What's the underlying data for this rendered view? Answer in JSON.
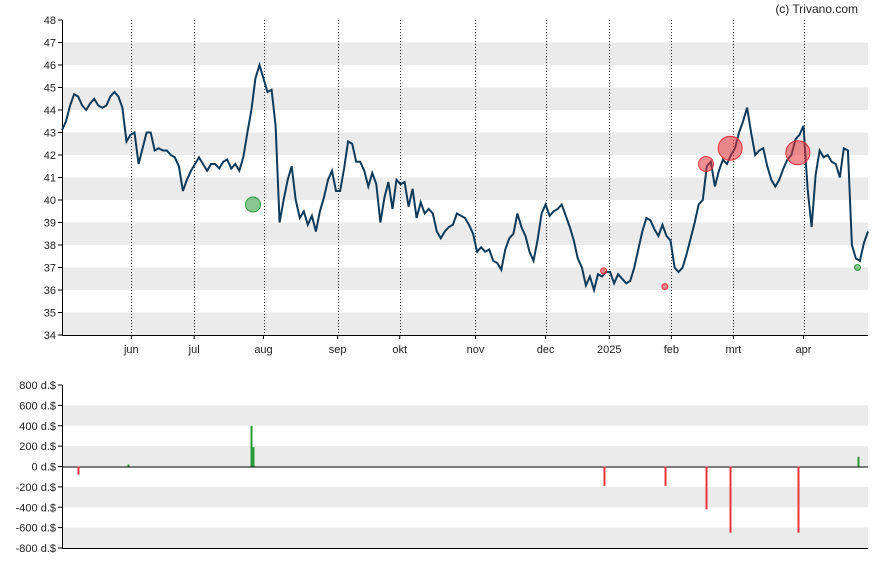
{
  "credit": "(c) Trivano.com",
  "colors": {
    "band": "#ebebeb",
    "line": "#0d3a5a",
    "buy": "#2a9a3a",
    "sell": "#e8333a",
    "axis": "#000000"
  },
  "chart_data": [
    {
      "type": "line",
      "ylim": [
        34,
        48
      ],
      "y_ticks": [
        "34",
        "35",
        "36",
        "37",
        "38",
        "39",
        "40",
        "41",
        "42",
        "43",
        "44",
        "45",
        "46",
        "47",
        "48"
      ],
      "x_ticks": [
        "jun",
        "jul",
        "aug",
        "sep",
        "okt",
        "nov",
        "dec",
        "2025",
        "feb",
        "mrt",
        "apr"
      ],
      "grid": "dotted vertical at month boundaries, alternating horizontal bands",
      "series": [
        {
          "values": [
            43.1,
            43.5,
            44.2,
            44.7,
            44.6,
            44.2,
            44.0,
            44.3,
            44.5,
            44.2,
            44.1,
            44.2,
            44.6,
            44.8,
            44.6,
            44.1,
            42.6,
            42.9,
            43.0,
            41.6,
            42.3,
            43.0,
            43.0,
            42.2,
            42.3,
            42.2,
            42.2,
            42.0,
            41.9,
            41.5,
            40.4,
            40.9,
            41.3,
            41.6,
            41.9,
            41.6,
            41.3,
            41.6,
            41.6,
            41.4,
            41.7,
            41.8,
            41.4,
            41.6,
            41.3,
            41.9,
            43.0,
            44.0,
            45.4,
            46.0,
            45.4,
            44.8,
            44.9,
            43.3,
            39.0,
            40.0,
            40.9,
            41.5,
            40.0,
            39.2,
            39.5,
            38.9,
            39.3,
            38.6,
            39.5,
            40.1,
            40.9,
            41.3,
            40.4,
            40.4,
            41.4,
            42.6,
            42.5,
            41.7,
            41.7,
            41.3,
            40.6,
            41.2,
            40.7,
            39.0,
            40.1,
            40.8,
            39.6,
            40.9,
            40.7,
            40.8,
            39.7,
            40.5,
            39.2,
            39.9,
            39.4,
            39.6,
            39.4,
            38.6,
            38.3,
            38.6,
            38.8,
            38.9,
            39.4,
            39.3,
            39.2,
            38.9,
            38.5,
            37.7,
            37.9,
            37.7,
            37.8,
            37.3,
            37.2,
            36.9,
            37.8,
            38.3,
            38.5,
            39.4,
            38.8,
            38.4,
            37.7,
            37.3,
            38.2,
            39.4,
            39.8,
            39.3,
            39.5,
            39.6,
            39.8,
            39.3,
            38.8,
            38.2,
            37.4,
            37.0,
            36.2,
            36.6,
            36.0,
            36.7,
            36.6,
            36.8,
            36.8,
            36.3,
            36.7,
            36.5,
            36.3,
            36.4,
            37.0,
            37.8,
            38.6,
            39.2,
            39.1,
            38.7,
            38.4,
            38.9,
            38.4,
            38.2,
            37.0,
            36.8,
            37.0,
            37.6,
            38.3,
            39.0,
            39.8,
            40.0,
            41.5,
            41.7,
            40.6,
            41.3,
            41.8,
            41.6,
            42.0,
            42.3,
            43.0,
            43.5,
            44.1,
            43.0,
            42.0,
            42.2,
            42.3,
            41.5,
            40.9,
            40.6,
            40.9,
            41.4,
            41.8,
            42.0,
            42.7,
            42.9,
            43.3,
            40.5,
            38.8,
            41.1,
            42.2,
            41.9,
            42.0,
            41.7,
            41.6,
            41.0,
            42.3,
            42.2,
            38.0,
            37.4,
            37.3,
            38.1,
            38.6
          ]
        }
      ]
    },
    {
      "type": "bar",
      "ylim": [
        -800,
        800
      ],
      "y_ticks": [
        "-800 d.$",
        "-600 d.$",
        "-400 d.$",
        "-200 d.$",
        "0 d.$",
        "200 d.$",
        "400 d.$",
        "600 d.$",
        "800 d.$"
      ],
      "series": [
        {
          "name": "buy",
          "points": [
            [
              0.082,
              20
            ],
            [
              0.235,
              400
            ],
            [
              0.237,
              190
            ],
            [
              0.987,
              95
            ]
          ]
        },
        {
          "name": "sell",
          "points": [
            [
              0.02,
              -80
            ],
            [
              0.672,
              -190
            ],
            [
              0.748,
              -190
            ],
            [
              0.799,
              -420
            ],
            [
              0.829,
              -650
            ],
            [
              0.913,
              -650
            ]
          ]
        }
      ]
    }
  ],
  "trade_markers": [
    {
      "type": "buy",
      "x": 0.237,
      "y": 39.8,
      "size": "medium"
    },
    {
      "type": "buy",
      "x": 0.987,
      "y": 37.0,
      "size": "small"
    },
    {
      "type": "sell",
      "x": 0.672,
      "y": 36.85,
      "size": "small"
    },
    {
      "type": "sell",
      "x": 0.748,
      "y": 36.15,
      "size": "small"
    },
    {
      "type": "sell",
      "x": 0.799,
      "y": 41.6,
      "size": "medium"
    },
    {
      "type": "sell",
      "x": 0.829,
      "y": 42.3,
      "size": "large"
    },
    {
      "type": "sell",
      "x": 0.913,
      "y": 42.1,
      "size": "large"
    }
  ]
}
